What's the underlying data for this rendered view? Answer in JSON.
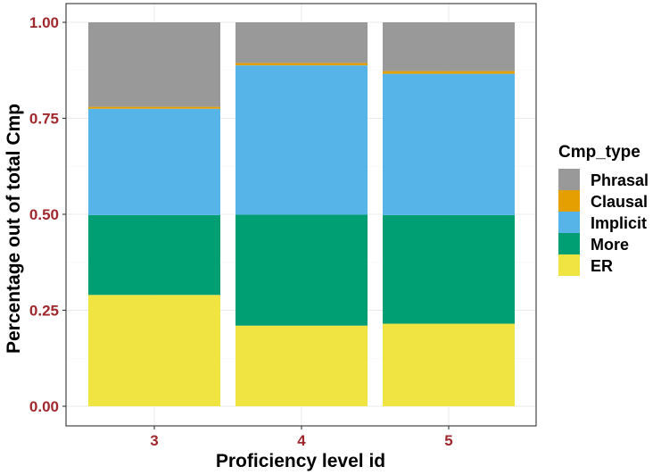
{
  "chart_data": {
    "type": "bar",
    "stacked": true,
    "categories": [
      "3",
      "4",
      "5"
    ],
    "series": [
      {
        "name": "ER",
        "color": "#F0E442",
        "values": [
          0.29,
          0.21,
          0.215
        ]
      },
      {
        "name": "More",
        "color": "#009E73",
        "values": [
          0.208,
          0.289,
          0.283
        ]
      },
      {
        "name": "Implicit",
        "color": "#56B4E9",
        "values": [
          0.277,
          0.389,
          0.368
        ]
      },
      {
        "name": "Clausal",
        "color": "#E69F00",
        "values": [
          0.005,
          0.006,
          0.007
        ]
      },
      {
        "name": "Phrasal",
        "color": "#999999",
        "values": [
          0.22,
          0.106,
          0.127
        ]
      }
    ],
    "xlabel": "Proficiency level id",
    "ylabel": "Percentage out of total Cmp",
    "ylim": [
      0,
      1
    ],
    "yticks": [
      "0.00",
      "0.25",
      "0.50",
      "0.75",
      "1.00"
    ],
    "grid": true,
    "legend": {
      "title": "Cmp_type",
      "placement": "right",
      "order": [
        "Phrasal",
        "Clausal",
        "Implicit",
        "More",
        "ER"
      ]
    },
    "tick_label_color": "#A0282D"
  }
}
